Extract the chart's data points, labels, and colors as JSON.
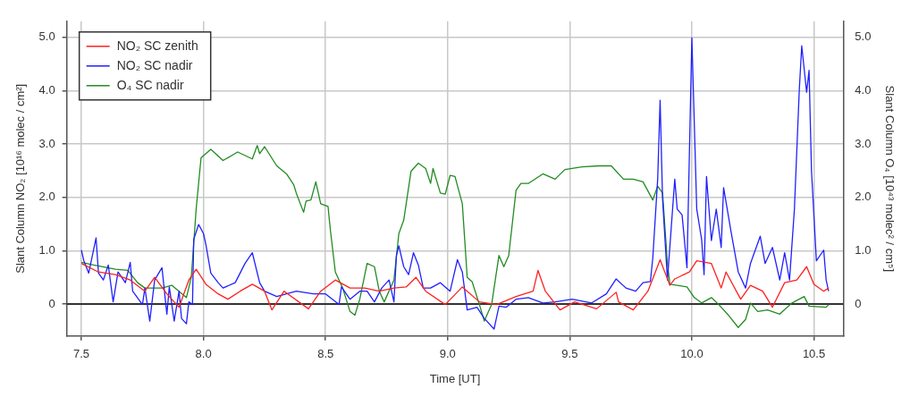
{
  "chart_data": {
    "type": "line",
    "xlabel": "Time [UT]",
    "ylabel": "Slant Column NO₂ [10¹⁶ molec / cm²]",
    "y2label": "Slant Column O₄ [10⁴³ molec² / cm⁵]",
    "xlim": [
      7.44,
      10.62
    ],
    "xticks": [
      {
        "value": 7.5,
        "label": "7.5"
      },
      {
        "value": 8,
        "label": "8.0"
      },
      {
        "value": 8.5,
        "label": "8.5"
      },
      {
        "value": 9,
        "label": "9.0"
      },
      {
        "value": 9.5,
        "label": "9.5"
      },
      {
        "value": 10,
        "label": "10.0"
      },
      {
        "value": 10.5,
        "label": "10.5"
      }
    ],
    "ylim": [
      -0.6,
      5.3
    ],
    "yticks": [
      0,
      {
        "value": 1,
        "label": "1.0"
      },
      {
        "value": 2,
        "label": "2.0"
      },
      {
        "value": 3,
        "label": "3.0"
      },
      {
        "value": 4,
        "label": "4.0"
      },
      {
        "value": 5,
        "label": "5.0"
      }
    ],
    "y2lim": [
      -0.6,
      5.3
    ],
    "y2ticks": [
      0,
      {
        "value": 1,
        "label": "1.0"
      },
      {
        "value": 2,
        "label": "2.0"
      },
      {
        "value": 3,
        "label": "3.0"
      },
      {
        "value": 4,
        "label": "4.0"
      },
      {
        "value": 5,
        "label": "5.0"
      }
    ],
    "grid": true,
    "legend": "top left",
    "marker": "none",
    "line_style": "solid",
    "ref_lines": [
      {
        "axis": "y",
        "value": 0,
        "color": "#333333"
      }
    ],
    "series": [
      {
        "name": "NO₂ SC zenith",
        "color": "#ff2020",
        "x": [
          7.5,
          7.57,
          7.64,
          7.7,
          7.76,
          7.8,
          7.85,
          7.9,
          7.94,
          7.97,
          8.01,
          8.06,
          8.1,
          8.15,
          8.2,
          8.25,
          8.28,
          8.33,
          8.43,
          8.48,
          8.54,
          8.6,
          8.66,
          8.72,
          8.78,
          8.83,
          8.87,
          8.91,
          8.99,
          9.06,
          9.13,
          9.2,
          9.28,
          9.35,
          9.37,
          9.4,
          9.46,
          9.52,
          9.61,
          9.69,
          9.7,
          9.76,
          9.82,
          9.87,
          9.91,
          9.93,
          9.99,
          10.02,
          10.08,
          10.12,
          10.14,
          10.2,
          10.24,
          10.29,
          10.33,
          10.38,
          10.43,
          10.47,
          10.5,
          10.54,
          10.56
        ],
        "values": [
          0.76,
          0.6,
          0.55,
          0.45,
          0.24,
          0.5,
          0.19,
          -0.06,
          0.45,
          0.65,
          0.37,
          0.19,
          0.09,
          0.24,
          0.37,
          0.24,
          -0.11,
          0.24,
          -0.09,
          0.24,
          0.45,
          0.3,
          0.3,
          0.24,
          0.3,
          0.32,
          0.5,
          0.24,
          -0.01,
          0.32,
          0.04,
          -0.01,
          0.14,
          0.24,
          0.63,
          0.24,
          -0.11,
          0.04,
          -0.09,
          0.22,
          0.04,
          -0.11,
          0.24,
          0.83,
          0.35,
          0.47,
          0.6,
          0.81,
          0.76,
          0.3,
          0.6,
          0.09,
          0.35,
          0.24,
          -0.06,
          0.4,
          0.45,
          0.7,
          0.37,
          0.24,
          0.3
        ]
      },
      {
        "name": "NO₂ SC nadir",
        "color": "#2020ff",
        "x": [
          7.5,
          7.51,
          7.53,
          7.56,
          7.57,
          7.59,
          7.61,
          7.63,
          7.65,
          7.68,
          7.7,
          7.71,
          7.75,
          7.76,
          7.78,
          7.8,
          7.83,
          7.85,
          7.86,
          7.88,
          7.9,
          7.91,
          7.93,
          7.94,
          7.955,
          7.96,
          7.98,
          8.0,
          8.01,
          8.03,
          8.06,
          8.08,
          8.13,
          8.17,
          8.2,
          8.23,
          8.25,
          8.3,
          8.38,
          8.45,
          8.5,
          8.555,
          8.565,
          8.6,
          8.64,
          8.67,
          8.7,
          8.73,
          8.76,
          8.78,
          8.79,
          8.8,
          8.82,
          8.84,
          8.86,
          8.88,
          8.9,
          8.93,
          8.97,
          9.01,
          9.04,
          9.06,
          9.08,
          9.12,
          9.15,
          9.19,
          9.21,
          9.24,
          9.28,
          9.33,
          9.39,
          9.44,
          9.51,
          9.59,
          9.65,
          9.69,
          9.73,
          9.77,
          9.8,
          9.83,
          9.84,
          9.86,
          9.87,
          9.88,
          9.9,
          9.93,
          9.94,
          9.96,
          9.98,
          10.0,
          10.02,
          10.04,
          10.05,
          10.06,
          10.08,
          10.1,
          10.12,
          10.13,
          10.16,
          10.19,
          10.22,
          10.24,
          10.28,
          10.3,
          10.33,
          10.36,
          10.38,
          10.4,
          10.42,
          10.44,
          10.45,
          10.47,
          10.48,
          10.49,
          10.51,
          10.54,
          10.55,
          10.56
        ],
        "values": [
          1.01,
          0.81,
          0.58,
          1.24,
          0.58,
          0.45,
          0.73,
          0.04,
          0.6,
          0.4,
          0.78,
          0.24,
          -0.01,
          0.3,
          -0.32,
          0.45,
          0.68,
          -0.19,
          0.32,
          -0.32,
          0.24,
          -0.27,
          -0.37,
          0.04,
          -0.01,
          1.21,
          1.49,
          1.32,
          1.11,
          0.58,
          0.4,
          0.3,
          0.4,
          0.76,
          0.96,
          0.4,
          0.24,
          0.14,
          0.24,
          0.19,
          0.19,
          -0.01,
          0.32,
          0.09,
          0.24,
          0.24,
          0.04,
          0.3,
          0.45,
          0.04,
          0.91,
          1.09,
          0.7,
          0.55,
          0.96,
          0.73,
          0.3,
          0.3,
          0.4,
          0.24,
          0.83,
          0.6,
          -0.11,
          -0.06,
          -0.27,
          -0.47,
          -0.04,
          -0.06,
          0.09,
          0.12,
          0.02,
          0.04,
          0.09,
          0.02,
          0.19,
          0.47,
          0.3,
          0.24,
          0.4,
          0.42,
          0.86,
          2.34,
          3.82,
          1.98,
          0.45,
          2.34,
          1.78,
          1.67,
          0.68,
          4.99,
          1.78,
          1.21,
          0.55,
          2.39,
          1.19,
          1.78,
          1.06,
          2.18,
          1.37,
          0.6,
          0.3,
          0.76,
          1.27,
          0.76,
          1.06,
          0.45,
          0.96,
          0.45,
          1.78,
          4.02,
          4.84,
          3.97,
          4.38,
          2.49,
          0.81,
          1.01,
          0.45,
          0.24
        ]
      },
      {
        "name": "O₄ SC nadir",
        "color": "#228b22",
        "axis": "y2",
        "x": [
          7.5,
          7.55,
          7.64,
          7.69,
          7.73,
          7.76,
          7.83,
          7.87,
          7.93,
          7.95,
          7.97,
          7.99,
          8.03,
          8.08,
          8.14,
          8.2,
          8.22,
          8.23,
          8.25,
          8.3,
          8.34,
          8.37,
          8.38,
          8.41,
          8.42,
          8.44,
          8.46,
          8.48,
          8.51,
          8.52,
          8.54,
          8.57,
          8.6,
          8.62,
          8.64,
          8.67,
          8.7,
          8.72,
          8.74,
          8.78,
          8.8,
          8.82,
          8.85,
          8.88,
          8.91,
          8.93,
          8.94,
          8.97,
          8.99,
          9.01,
          9.03,
          9.06,
          9.08,
          9.1,
          9.13,
          9.15,
          9.18,
          9.21,
          9.23,
          9.25,
          9.28,
          9.3,
          9.33,
          9.39,
          9.44,
          9.48,
          9.55,
          9.62,
          9.67,
          9.72,
          9.76,
          9.8,
          9.84,
          9.86,
          9.88,
          9.9,
          9.91,
          9.98,
          10.01,
          10.04,
          10.08,
          10.11,
          10.15,
          10.19,
          10.22,
          10.24,
          10.27,
          10.31,
          10.36,
          10.41,
          10.46,
          10.48,
          10.55,
          10.56
        ],
        "values": [
          0.78,
          0.73,
          0.65,
          0.63,
          0.4,
          0.3,
          0.3,
          0.35,
          0.12,
          0.5,
          1.78,
          2.74,
          2.9,
          2.69,
          2.85,
          2.72,
          2.97,
          2.82,
          2.95,
          2.59,
          2.44,
          2.23,
          2.08,
          1.72,
          1.93,
          1.95,
          2.29,
          1.88,
          1.83,
          1.37,
          0.6,
          0.3,
          -0.14,
          -0.21,
          0.09,
          0.76,
          0.7,
          0.24,
          0.04,
          0.45,
          1.32,
          1.57,
          2.49,
          2.64,
          2.54,
          2.26,
          2.54,
          2.08,
          2.06,
          2.41,
          2.39,
          1.88,
          0.5,
          0.42,
          -0.01,
          -0.32,
          -0.01,
          0.91,
          0.7,
          0.91,
          2.13,
          2.26,
          2.26,
          2.44,
          2.34,
          2.52,
          2.57,
          2.59,
          2.59,
          2.34,
          2.34,
          2.29,
          1.95,
          2.21,
          2.08,
          0.76,
          0.37,
          0.32,
          0.12,
          0.02,
          0.12,
          -0.01,
          -0.21,
          -0.44,
          -0.29,
          0.02,
          -0.14,
          -0.11,
          -0.19,
          0.02,
          0.14,
          -0.04,
          -0.06,
          -0.01
        ]
      }
    ]
  }
}
